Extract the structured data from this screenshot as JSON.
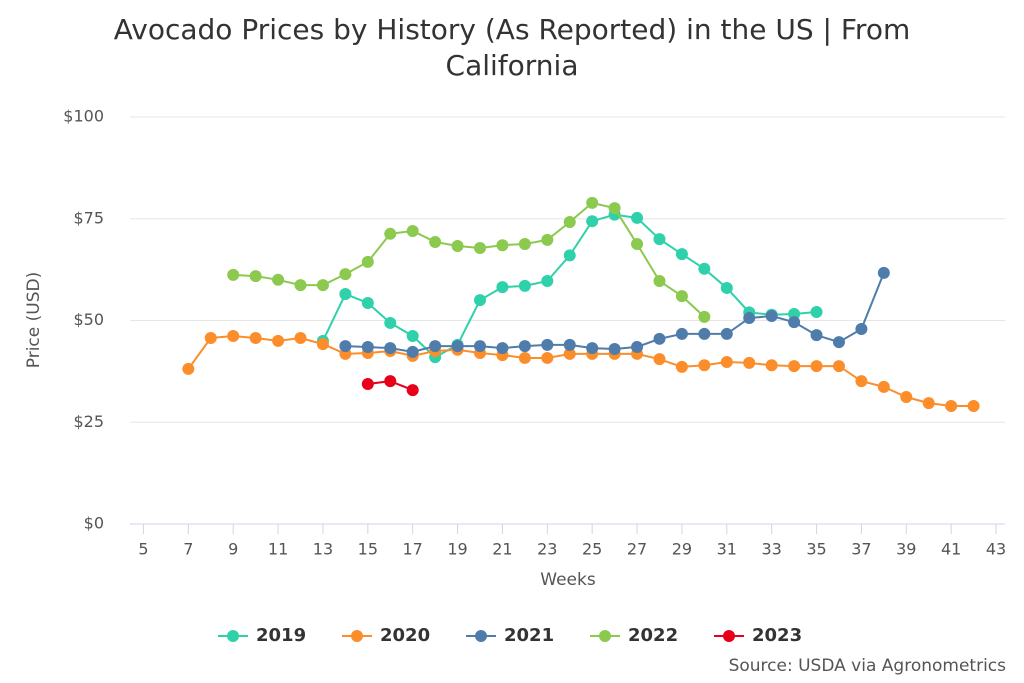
{
  "chart_data": {
    "type": "line",
    "title": "Avocado Prices by History (As Reported) in the US | From California",
    "xlabel": "Weeks",
    "ylabel": "Price (USD)",
    "source": "Source: USDA via Agronometrics",
    "xlim": [
      4.4,
      43.4
    ],
    "xticks": [
      5,
      7,
      9,
      11,
      13,
      15,
      17,
      19,
      21,
      23,
      25,
      27,
      29,
      31,
      33,
      35,
      37,
      39,
      41,
      43
    ],
    "ylim": [
      0,
      100
    ],
    "yticks": [
      {
        "value": 0,
        "label": "$0"
      },
      {
        "value": 25,
        "label": "$25"
      },
      {
        "value": 50,
        "label": "$50"
      },
      {
        "value": 75,
        "label": "$75"
      },
      {
        "value": 100,
        "label": "$100"
      }
    ],
    "grid": true,
    "legend": "bottom",
    "series": [
      {
        "name": "2019",
        "color": "#2fd1aa",
        "x": [
          13,
          14,
          15,
          16,
          17,
          18,
          19,
          20,
          21,
          22,
          23,
          24,
          25,
          26,
          27,
          28,
          29,
          30,
          31,
          32,
          33,
          34,
          35
        ],
        "values": [
          45,
          56.5,
          54.3,
          49.4,
          46.2,
          41,
          44,
          55,
          58.2,
          58.5,
          59.7,
          66,
          74.4,
          76,
          75.2,
          70,
          66.3,
          62.7,
          58,
          52,
          51.4,
          51.6,
          52.1
        ]
      },
      {
        "name": "2020",
        "color": "#fb8e2a",
        "x": [
          7,
          8,
          9,
          10,
          11,
          12,
          13,
          14,
          15,
          16,
          17,
          18,
          19,
          20,
          21,
          22,
          23,
          24,
          25,
          26,
          27,
          28,
          29,
          30,
          31,
          32,
          33,
          34,
          35,
          36,
          37,
          38,
          39,
          40,
          41,
          42
        ],
        "values": [
          38.1,
          45.7,
          46.2,
          45.7,
          45,
          45.7,
          44.2,
          41.8,
          42,
          42.5,
          41.3,
          42.5,
          42.8,
          42,
          41.5,
          40.8,
          40.8,
          41.8,
          41.8,
          41.8,
          41.8,
          40.5,
          38.6,
          39,
          39.8,
          39.6,
          39,
          38.8,
          38.8,
          38.8,
          35.1,
          33.7,
          31.2,
          29.7,
          29,
          29
        ]
      },
      {
        "name": "2021",
        "color": "#4f7cab",
        "x": [
          14,
          15,
          16,
          17,
          18,
          19,
          20,
          21,
          22,
          23,
          24,
          25,
          26,
          27,
          28,
          29,
          30,
          31,
          32,
          33,
          34,
          35,
          36,
          37,
          38
        ],
        "values": [
          43.7,
          43.5,
          43.2,
          42.3,
          43.7,
          43.7,
          43.7,
          43.2,
          43.7,
          44,
          44,
          43.2,
          43,
          43.5,
          45.5,
          46.7,
          46.7,
          46.7,
          50.6,
          51.1,
          49.6,
          46.4,
          44.7,
          47.9,
          61.7
        ]
      },
      {
        "name": "2022",
        "color": "#8bc94f",
        "x": [
          9,
          10,
          11,
          12,
          13,
          14,
          15,
          16,
          17,
          18,
          19,
          20,
          21,
          22,
          23,
          24,
          25,
          26,
          27,
          28,
          29,
          30
        ],
        "values": [
          61.2,
          60.9,
          60,
          58.7,
          58.7,
          61.4,
          64.4,
          71.3,
          72,
          69.3,
          68.3,
          67.8,
          68.5,
          68.8,
          69.8,
          74.2,
          78.9,
          77.6,
          68.8,
          59.7,
          56,
          50.9
        ]
      },
      {
        "name": "2023",
        "color": "#e8001a",
        "x": [
          15,
          16,
          17
        ],
        "values": [
          34.4,
          35.1,
          32.9
        ]
      }
    ]
  }
}
